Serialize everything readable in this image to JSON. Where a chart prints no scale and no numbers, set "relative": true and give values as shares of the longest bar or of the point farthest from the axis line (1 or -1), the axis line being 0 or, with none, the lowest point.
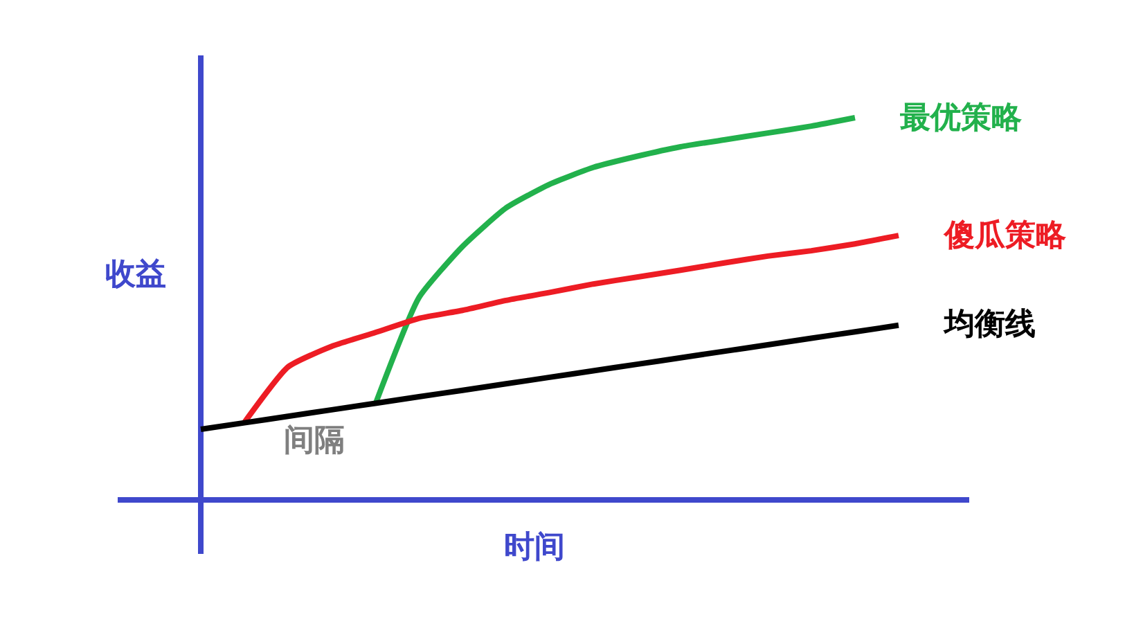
{
  "chart_data": {
    "type": "line",
    "relative": true,
    "xlabel": "时间",
    "ylabel": "收益",
    "annotations": [
      "间隔"
    ],
    "legend": false,
    "marker": "none",
    "line_style": "solid",
    "categories": [
      null,
      null,
      null,
      null,
      null,
      null,
      null,
      null,
      null,
      null,
      null,
      null,
      null,
      null,
      null,
      null,
      null
    ],
    "series": [
      {
        "name": "最优策略",
        "color": "#22b14c",
        "values": [
          null,
          null,
          null,
          null,
          0.25,
          0.529,
          0.663,
          0.764,
          0.826,
          0.87,
          0.899,
          0.924,
          0.942,
          0.96,
          0.978,
          1.0,
          null
        ]
      },
      {
        "name": "傻瓜策略",
        "color": "#ed1c24",
        "values": [
          null,
          0.203,
          0.348,
          0.402,
          0.438,
          0.475,
          0.496,
          0.522,
          0.543,
          0.565,
          0.583,
          0.601,
          0.62,
          0.638,
          0.652,
          0.67,
          0.692
        ]
      },
      {
        "name": "均衡线",
        "color": "#000000",
        "values": [
          0.185,
          0.202,
          0.219,
          0.236,
          0.253,
          0.27,
          0.287,
          0.304,
          0.321,
          0.338,
          0.355,
          0.372,
          0.389,
          0.406,
          0.423,
          0.44,
          0.457
        ]
      }
    ]
  }
}
